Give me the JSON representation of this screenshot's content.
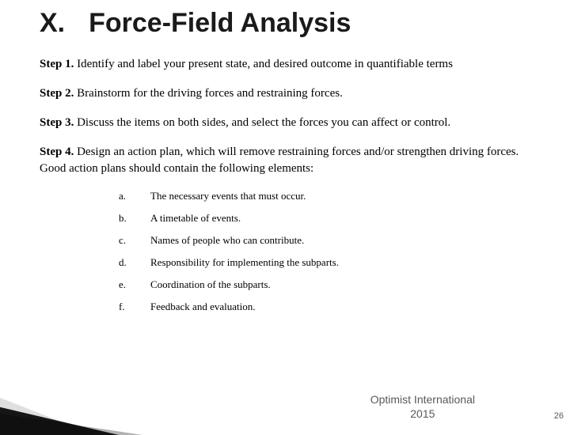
{
  "heading": {
    "numeral": "X.",
    "title": "Force-Field Analysis"
  },
  "steps": [
    {
      "label": "Step 1.",
      "text": "Identify and label your present state, and desired outcome in quantifiable terms"
    },
    {
      "label": "Step 2.",
      "text": "Brainstorm for the driving forces and restraining forces."
    },
    {
      "label": "Step 3.",
      "text": "Discuss the items on both sides, and select the forces you can affect or control."
    },
    {
      "label": "Step 4.",
      "text": "Design an action plan, which will remove restraining forces and/or strengthen driving forces.  Good action plans should contain the following elements:"
    }
  ],
  "subitems": [
    {
      "letter": "a.",
      "text": "The necessary events that must occur."
    },
    {
      "letter": "b.",
      "text": "A timetable of events."
    },
    {
      "letter": "c.",
      "text": "Names of people who can contribute."
    },
    {
      "letter": "d.",
      "text": "Responsibility for implementing the subparts."
    },
    {
      "letter": "e.",
      "text": "Coordination of the subparts."
    },
    {
      "letter": "f.",
      "text": "Feedback and evaluation."
    }
  ],
  "footer": {
    "brand_line1": "Optimist International",
    "brand_line2": "2015",
    "page": "26"
  }
}
